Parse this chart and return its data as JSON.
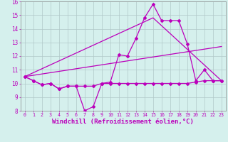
{
  "background_color": "#d5f0ed",
  "grid_color": "#b0c8c8",
  "line_color": "#bb00bb",
  "xlabel": "Windchill (Refroidissement éolien,°C)",
  "xlabel_fontsize": 6.5,
  "xlim": [
    -0.5,
    23.5
  ],
  "ylim": [
    8,
    16
  ],
  "line1_x": [
    0,
    1,
    2,
    3,
    4,
    5,
    6,
    7,
    8,
    9,
    10,
    11,
    12,
    13,
    14,
    15,
    16,
    17,
    18,
    19,
    20,
    21,
    22,
    23
  ],
  "line1_y": [
    10.5,
    10.2,
    9.9,
    10.0,
    9.6,
    9.8,
    9.8,
    8.0,
    8.3,
    10.0,
    10.1,
    12.1,
    12.0,
    13.3,
    14.8,
    15.8,
    14.6,
    14.6,
    14.6,
    12.9,
    10.2,
    11.0,
    10.2,
    10.2
  ],
  "line2_x": [
    0,
    1,
    2,
    3,
    4,
    5,
    6,
    7,
    8,
    9,
    10,
    11,
    12,
    13,
    14,
    15,
    16,
    17,
    18,
    19,
    20,
    21,
    22,
    23
  ],
  "line2_y": [
    10.5,
    10.2,
    9.9,
    10.0,
    9.6,
    9.8,
    9.8,
    9.8,
    9.8,
    10.0,
    10.0,
    10.0,
    10.0,
    10.0,
    10.0,
    10.0,
    10.0,
    10.0,
    10.0,
    10.0,
    10.1,
    10.2,
    10.2,
    10.2
  ],
  "line3_x": [
    0,
    23
  ],
  "line3_y": [
    10.5,
    12.7
  ],
  "line4_x": [
    0,
    15,
    23
  ],
  "line4_y": [
    10.5,
    14.8,
    10.2
  ]
}
